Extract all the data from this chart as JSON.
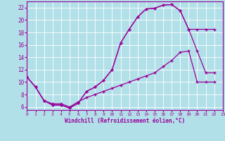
{
  "background_color": "#b2e0e8",
  "grid_color": "#ffffff",
  "line_color": "#990099",
  "xlabel": "Windchill (Refroidissement éolien,°C)",
  "xlabel_color": "#990099",
  "tick_color": "#990099",
  "xlim": [
    0,
    23
  ],
  "ylim": [
    5.5,
    23
  ],
  "xticks": [
    0,
    1,
    2,
    3,
    4,
    5,
    6,
    7,
    8,
    9,
    10,
    11,
    12,
    13,
    14,
    15,
    16,
    17,
    18,
    19,
    20,
    21,
    22,
    23
  ],
  "yticks": [
    6,
    8,
    10,
    12,
    14,
    16,
    18,
    20,
    22
  ],
  "line1_x": [
    0,
    1,
    2,
    3,
    4,
    5,
    6,
    7,
    8,
    9,
    10,
    11,
    12,
    13,
    14,
    15,
    16,
    17,
    18,
    19,
    20,
    21,
    22
  ],
  "line1_y": [
    10.8,
    9.2,
    7.0,
    6.3,
    6.3,
    5.8,
    6.6,
    8.5,
    9.2,
    10.3,
    12.0,
    16.3,
    18.5,
    20.5,
    21.8,
    21.9,
    22.4,
    22.5,
    21.5,
    18.5,
    18.5,
    18.5,
    18.5
  ],
  "line2_x": [
    0,
    1,
    2,
    3,
    4,
    5,
    6,
    7,
    8,
    9,
    10,
    11,
    12,
    13,
    14,
    15,
    16,
    17,
    18,
    19,
    20,
    21,
    22
  ],
  "line2_y": [
    10.8,
    9.2,
    7.0,
    6.3,
    6.3,
    5.8,
    6.6,
    8.5,
    9.2,
    10.3,
    12.0,
    16.3,
    18.5,
    20.5,
    21.8,
    21.9,
    22.4,
    22.5,
    21.5,
    18.5,
    15.0,
    11.5,
    11.5
  ],
  "line3_x": [
    0,
    1,
    2,
    3,
    4,
    5,
    6,
    7,
    8,
    9,
    10,
    11,
    12,
    13,
    14,
    15,
    16,
    17,
    18,
    19,
    20,
    21,
    22
  ],
  "line3_y": [
    10.8,
    9.2,
    7.0,
    6.5,
    6.5,
    6.0,
    6.8,
    7.5,
    8.0,
    8.5,
    9.0,
    9.5,
    10.0,
    10.5,
    11.0,
    11.5,
    12.5,
    13.5,
    14.8,
    15.0,
    10.0,
    10.0,
    10.0
  ]
}
